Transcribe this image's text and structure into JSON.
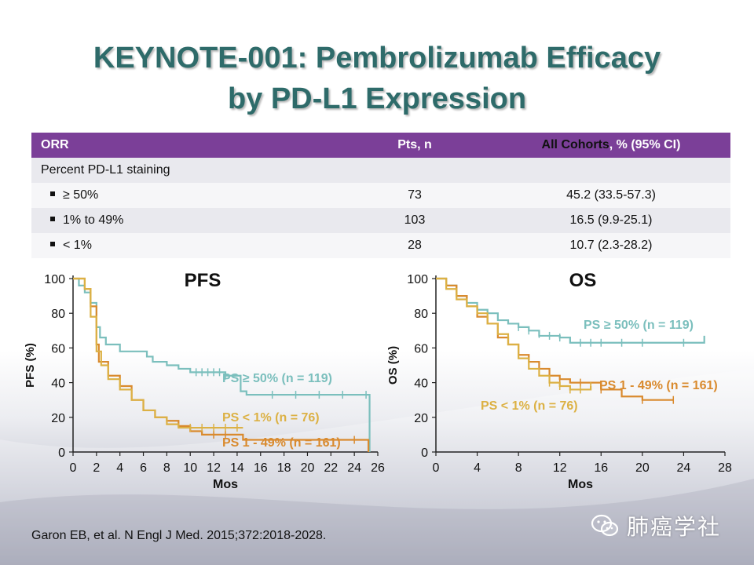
{
  "title": {
    "line1": "KEYNOTE-001: Pembrolizumab Efficacy",
    "line2": "by PD-L1 Expression"
  },
  "table": {
    "header": {
      "col1": "ORR",
      "col2": "Pts, n",
      "col3_highlight": "All Cohorts",
      "col3_rest": ", % (95% CI)"
    },
    "section_label": "Percent PD-L1 staining",
    "rows": [
      {
        "label": "≥ 50%",
        "pts": "73",
        "result": "45.2 (33.5-57.3)"
      },
      {
        "label": "1% to 49%",
        "pts": "103",
        "result": "16.5 (9.9-25.1)"
      },
      {
        "label": "< 1%",
        "pts": "28",
        "result": "10.7 (2.3-28.2)"
      }
    ]
  },
  "colors": {
    "header_purple": "#7b3f98",
    "title_teal": "#2e6b6a",
    "ps_high": "#7bbfbd",
    "ps_mid": "#d98a2e",
    "ps_low": "#dcb144"
  },
  "chart_data": [
    {
      "type": "line",
      "title": "PFS",
      "xlabel": "Mos",
      "ylabel": "PFS (%)",
      "xlim": [
        0,
        26
      ],
      "ylim": [
        0,
        100
      ],
      "xticks": [
        "0",
        "2",
        "4",
        "6",
        "8",
        "10",
        "12",
        "14",
        "16",
        "18",
        "20",
        "22",
        "24",
        "26"
      ],
      "yticks": [
        "0",
        "20",
        "40",
        "60",
        "80",
        "100"
      ],
      "series": [
        {
          "name": "PS ≥ 50% (n = 119)",
          "color": "#7bbfbd",
          "label_color": "#7bbfbd",
          "points": [
            [
              0,
              100
            ],
            [
              0.5,
              96
            ],
            [
              1,
              92
            ],
            [
              1.5,
              86
            ],
            [
              2,
              72
            ],
            [
              2.3,
              66
            ],
            [
              2.8,
              62
            ],
            [
              4,
              58
            ],
            [
              6.3,
              55
            ],
            [
              6.8,
              52
            ],
            [
              8,
              50
            ],
            [
              9,
              48
            ],
            [
              10,
              46
            ],
            [
              13,
              44
            ],
            [
              14,
              44
            ],
            [
              14.3,
              35
            ],
            [
              14.8,
              33
            ],
            [
              25,
              33
            ],
            [
              25.3,
              0
            ]
          ],
          "censor": [
            [
              10.5,
              46
            ],
            [
              11,
              46
            ],
            [
              11.5,
              46
            ],
            [
              12,
              46
            ],
            [
              12.5,
              46
            ],
            [
              13,
              44
            ],
            [
              17,
              33
            ],
            [
              19,
              33
            ],
            [
              21,
              33
            ],
            [
              23,
              33
            ],
            [
              25,
              33
            ]
          ]
        },
        {
          "name": "PS 1 - 49% (n = 161)",
          "color": "#d98a2e",
          "label_color": "#d98a2e",
          "points": [
            [
              0,
              100
            ],
            [
              1,
              94
            ],
            [
              1.5,
              84
            ],
            [
              2,
              62
            ],
            [
              2.2,
              52
            ],
            [
              3,
              44
            ],
            [
              4,
              38
            ],
            [
              5,
              30
            ],
            [
              6,
              24
            ],
            [
              7,
              20
            ],
            [
              8,
              18
            ],
            [
              9,
              15
            ],
            [
              10,
              12
            ],
            [
              11,
              10
            ],
            [
              13,
              10
            ],
            [
              14,
              10
            ],
            [
              14.5,
              7
            ],
            [
              25,
              7
            ],
            [
              25.2,
              0
            ]
          ],
          "censor": [
            [
              12,
              10
            ],
            [
              13,
              10
            ],
            [
              24,
              7
            ]
          ]
        },
        {
          "name": "PS < 1% (n = 76)",
          "color": "#dcb144",
          "label_color": "#dcb144",
          "points": [
            [
              0,
              100
            ],
            [
              1,
              94
            ],
            [
              1.5,
              78
            ],
            [
              2,
              58
            ],
            [
              2.4,
              50
            ],
            [
              3,
              42
            ],
            [
              4,
              36
            ],
            [
              5,
              30
            ],
            [
              6,
              24
            ],
            [
              7,
              20
            ],
            [
              8,
              16
            ],
            [
              9,
              14
            ],
            [
              10,
              14
            ],
            [
              12,
              14
            ],
            [
              14.5,
              14
            ]
          ],
          "censor": [
            [
              10,
              14
            ],
            [
              11,
              14
            ],
            [
              12,
              14
            ],
            [
              13,
              14
            ],
            [
              14,
              14
            ]
          ]
        }
      ]
    },
    {
      "type": "line",
      "title": "OS",
      "xlabel": "Mos",
      "ylabel": "OS (%)",
      "xlim": [
        0,
        28
      ],
      "ylim": [
        0,
        100
      ],
      "xticks": [
        "0",
        "4",
        "8",
        "12",
        "16",
        "20",
        "24",
        "28"
      ],
      "yticks": [
        "0",
        "20",
        "40",
        "60",
        "80",
        "100"
      ],
      "series": [
        {
          "name": "PS ≥ 50% (n = 119)",
          "color": "#7bbfbd",
          "label_color": "#7bbfbd",
          "points": [
            [
              0,
              100
            ],
            [
              1,
              96
            ],
            [
              2,
              90
            ],
            [
              3,
              86
            ],
            [
              4,
              82
            ],
            [
              5,
              80
            ],
            [
              6,
              76
            ],
            [
              7,
              74
            ],
            [
              8,
              72
            ],
            [
              9,
              70
            ],
            [
              10,
              67
            ],
            [
              12,
              66
            ],
            [
              13,
              63
            ],
            [
              14,
              63
            ],
            [
              18,
              63
            ],
            [
              26,
              63
            ],
            [
              26,
              67
            ]
          ],
          "censor": [
            [
              8,
              72
            ],
            [
              9,
              70
            ],
            [
              10,
              68
            ],
            [
              11,
              67
            ],
            [
              12,
              66
            ],
            [
              14,
              63
            ],
            [
              15,
              63
            ],
            [
              16,
              63
            ],
            [
              18,
              63
            ],
            [
              20,
              63
            ],
            [
              24,
              63
            ]
          ]
        },
        {
          "name": "PS 1 - 49% (n = 161)",
          "color": "#d98a2e",
          "label_color": "#d98a2e",
          "points": [
            [
              0,
              100
            ],
            [
              1,
              96
            ],
            [
              2,
              90
            ],
            [
              3,
              84
            ],
            [
              4,
              78
            ],
            [
              5,
              74
            ],
            [
              6,
              66
            ],
            [
              7,
              62
            ],
            [
              8,
              56
            ],
            [
              9,
              52
            ],
            [
              10,
              48
            ],
            [
              11,
              44
            ],
            [
              12,
              42
            ],
            [
              13,
              40
            ],
            [
              14,
              40
            ],
            [
              16,
              36
            ],
            [
              18,
              32
            ],
            [
              20,
              30
            ],
            [
              23,
              30
            ]
          ],
          "censor": [
            [
              12,
              42
            ],
            [
              14,
              40
            ],
            [
              15,
              38
            ],
            [
              16,
              36
            ],
            [
              20,
              30
            ],
            [
              23,
              30
            ]
          ]
        },
        {
          "name": "PS < 1% (n = 76)",
          "color": "#dcb144",
          "label_color": "#dcb144",
          "points": [
            [
              0,
              100
            ],
            [
              1,
              94
            ],
            [
              2,
              88
            ],
            [
              3,
              84
            ],
            [
              4,
              80
            ],
            [
              5,
              74
            ],
            [
              6,
              68
            ],
            [
              7,
              62
            ],
            [
              8,
              54
            ],
            [
              9,
              48
            ],
            [
              10,
              44
            ],
            [
              11,
              40
            ],
            [
              12,
              38
            ],
            [
              13,
              36
            ],
            [
              14,
              36
            ],
            [
              15,
              38
            ]
          ],
          "censor": [
            [
              11,
              40
            ],
            [
              12,
              38
            ],
            [
              13,
              36
            ],
            [
              14,
              36
            ],
            [
              15,
              38
            ]
          ]
        }
      ]
    }
  ],
  "citation": "Garon EB, et al. N Engl J Med. 2015;372:2018-2028.",
  "watermark": {
    "icon": "wechat-icon",
    "text": "肺癌学社"
  }
}
